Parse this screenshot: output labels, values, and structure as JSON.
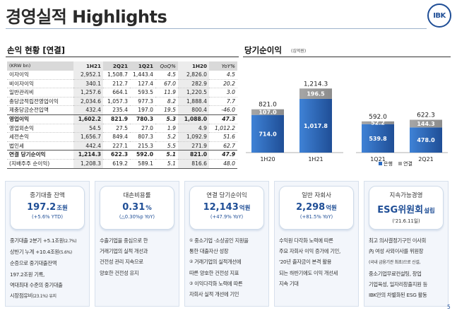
{
  "page": {
    "title": "경영실적 Highlights",
    "logo_text": "IBK",
    "page_number": "5"
  },
  "table_section": {
    "heading": "손익 현황 [연결]",
    "columns": [
      "(KRW bn)",
      "1H21",
      "2Q21",
      "1Q21",
      "QoQ%",
      "1H20",
      "YoY%"
    ],
    "rows": [
      {
        "label": "이자이익",
        "v": [
          "2,952.1",
          "1,508.7",
          "1,443.4",
          "4.5",
          "2,826.0",
          "4.5"
        ]
      },
      {
        "label": "비이자이익",
        "v": [
          "340.1",
          "212.7",
          "127.4",
          "67.0",
          "282.9",
          "20.2"
        ]
      },
      {
        "label": "일반관리비",
        "v": [
          "1,257.6",
          "664.1",
          "593.5",
          "11.9",
          "1,220.5",
          "3.0"
        ]
      },
      {
        "label": "충당금적립전영업이익",
        "v": [
          "2,034.6",
          "1,057.3",
          "977.3",
          "8.2",
          "1,888.4",
          "7.7"
        ]
      },
      {
        "label": "제충당금순전입액",
        "v": [
          "432.4",
          "235.4",
          "197.0",
          "19.5",
          "800.4",
          "-46.0"
        ]
      },
      {
        "label": "영업이익",
        "v": [
          "1,602.2",
          "821.9",
          "780.3",
          "5.3",
          "1,088.0",
          "47.3"
        ]
      },
      {
        "label": "영업외손익",
        "v": [
          "54.5",
          "27.5",
          "27.0",
          "1.9",
          "4.9",
          "1,012.2"
        ]
      },
      {
        "label": "세전손익",
        "v": [
          "1,656.7",
          "849.4",
          "807.3",
          "5.2",
          "1,092.9",
          "51.6"
        ]
      },
      {
        "label": "법인세",
        "v": [
          "442.4",
          "227.1",
          "215.3",
          "5.5",
          "271.9",
          "62.7"
        ]
      },
      {
        "label": "연결 당기순이익",
        "v": [
          "1,214.3",
          "622.3",
          "592.0",
          "5.1",
          "821.0",
          "47.9"
        ]
      },
      {
        "label": "(지배주주 순이익)",
        "v": [
          "1,208.3",
          "619.2",
          "589.1",
          "5.1",
          "816.6",
          "48.0"
        ]
      }
    ]
  },
  "chart_section": {
    "heading": "당기순이익",
    "unit": "(십억원)"
  },
  "chart_data": {
    "type": "bar",
    "stacked": true,
    "categories": [
      "1H20",
      "1H21",
      "1Q21",
      "2Q21"
    ],
    "series": [
      {
        "name": "은행",
        "values": [
          714.0,
          1017.8,
          539.8,
          478.0
        ],
        "color": "#2b6bc2"
      },
      {
        "name": "연결",
        "values": [
          107.0,
          196.5,
          52.2,
          144.3
        ],
        "color": "#a6a6a6"
      }
    ],
    "totals": [
      "821.0",
      "1,214.3",
      "592.0",
      "622.3"
    ],
    "value_labels": {
      "bank": [
        "714.0",
        "1,017.8",
        "539.8",
        "478.0"
      ],
      "consol": [
        "107.0",
        "196.5",
        "52.2",
        "144.3"
      ]
    },
    "legend_position": "bottom-right",
    "colors": {
      "bank_light": "#3f82d6",
      "bank_dark": "#1f4e96",
      "consol": "#a6a6a6",
      "consol_dark": "#8c8c8c"
    }
  },
  "cards": [
    {
      "title": "중기대출 잔액",
      "value": "197.2",
      "unit": "조원",
      "sub": "(+5.6% YTD)",
      "lines": [
        {
          "text": "중기대출 2분기 +5.1조원",
          "small": "(2.7%)"
        },
        {
          "text": "상반기 누계 +10.4조원",
          "small": "(5.6%)"
        },
        {
          "text": "순증으로 중기대출잔액",
          "small": ""
        },
        {
          "text": "197.2조원 기록,",
          "small": ""
        },
        {
          "text": "역대최대 수준의 중기대출",
          "small": ""
        },
        {
          "text": "시장점유비",
          "small": "(23.1%) 유지"
        }
      ]
    },
    {
      "title": "대손비용률",
      "value": "0.31",
      "unit": "%",
      "sub": "(△0.30%p YoY)",
      "lines": [
        {
          "text": "수출기업을 중심으로 한"
        },
        {
          "text": "거래기업의 실적 개선과"
        },
        {
          "text": "건전성 관리 지속으로"
        },
        {
          "text": "양호한 건전성 유지"
        }
      ]
    },
    {
      "title": "연결 당기순이익",
      "value": "12,143",
      "unit": "억원",
      "sub": "(+47.9% YoY)",
      "lines": [
        {
          "num": "①",
          "text": " 중소기업 ·소상공인 지원을"
        },
        {
          "num": "",
          "text": "통한 대출자산 성장"
        },
        {
          "num": "②",
          "text": " 거래기업의 실적개선에"
        },
        {
          "num": "",
          "text": "따른 양호한 건전성 지표"
        },
        {
          "num": "③",
          "text": " 이익다각화 노력에 따른"
        },
        {
          "num": "",
          "text": "자회사 실적 개선에 기인"
        }
      ]
    },
    {
      "title": "일반 자회사",
      "value": "2,298",
      "unit": "억원",
      "sub": "(+81.5% YoY)",
      "lines": [
        {
          "text": "수익원 다각화 노력에 따른"
        },
        {
          "text": "주요 자회사 이익 증가에 기인,"
        },
        {
          "text": "'20년 출자금이 본격 활용"
        },
        {
          "text": "되는 하반기에도 이익 개선세"
        },
        {
          "text": "지속 기대"
        }
      ]
    },
    {
      "title": "지속가능경영",
      "value": "ESG위원회",
      "unit": "설립",
      "sub": "('21.6.11일)",
      "lines": [
        {
          "text": "최고 의사결정기구인 이사회",
          "small": ""
        },
        {
          "text": "內 여성 사외이사를 위원장",
          "small": ""
        },
        {
          "text": "",
          "small": "(국내 금융기관 최초)으로 신설,",
          "mixed": true
        },
        {
          "text": "중소기업무료컨설팅, 창업",
          "small": ""
        },
        {
          "text": "기업육성, 일자리창출지원 등",
          "small": ""
        },
        {
          "text": "IBK만의 차별화된 ESG 활동",
          "small": ""
        }
      ]
    }
  ]
}
